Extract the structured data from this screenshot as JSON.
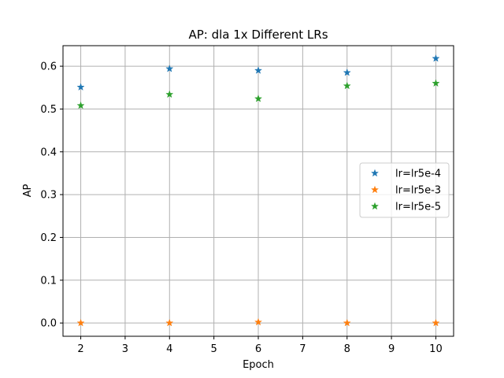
{
  "chart_data": {
    "type": "scatter",
    "title": "AP: dla 1x Different LRs",
    "xlabel": "Epoch",
    "ylabel": "AP",
    "xlim": [
      1.6,
      10.4
    ],
    "ylim": [
      -0.031,
      0.648
    ],
    "x_ticks": [
      2,
      3,
      4,
      5,
      6,
      7,
      8,
      9,
      10
    ],
    "y_ticks": [
      0.0,
      0.1,
      0.2,
      0.3,
      0.4,
      0.5,
      0.6
    ],
    "y_tick_labels": [
      "0.0",
      "0.1",
      "0.2",
      "0.3",
      "0.4",
      "0.5",
      "0.6"
    ],
    "grid": true,
    "legend_position": "center-right",
    "marker": "star",
    "series": [
      {
        "name": "lr=lr5e-4",
        "color": "#1f77b4",
        "x": [
          2,
          4,
          6,
          8,
          10
        ],
        "values": [
          0.551,
          0.594,
          0.59,
          0.585,
          0.618
        ]
      },
      {
        "name": "lr=lr5e-3",
        "color": "#ff7f0e",
        "x": [
          2,
          4,
          6,
          8,
          10
        ],
        "values": [
          0.0,
          0.0,
          0.002,
          0.0,
          0.0
        ]
      },
      {
        "name": "lr=lr5e-5",
        "color": "#2ca02c",
        "x": [
          2,
          4,
          6,
          8,
          10
        ],
        "values": [
          0.508,
          0.534,
          0.524,
          0.554,
          0.56
        ]
      }
    ]
  }
}
